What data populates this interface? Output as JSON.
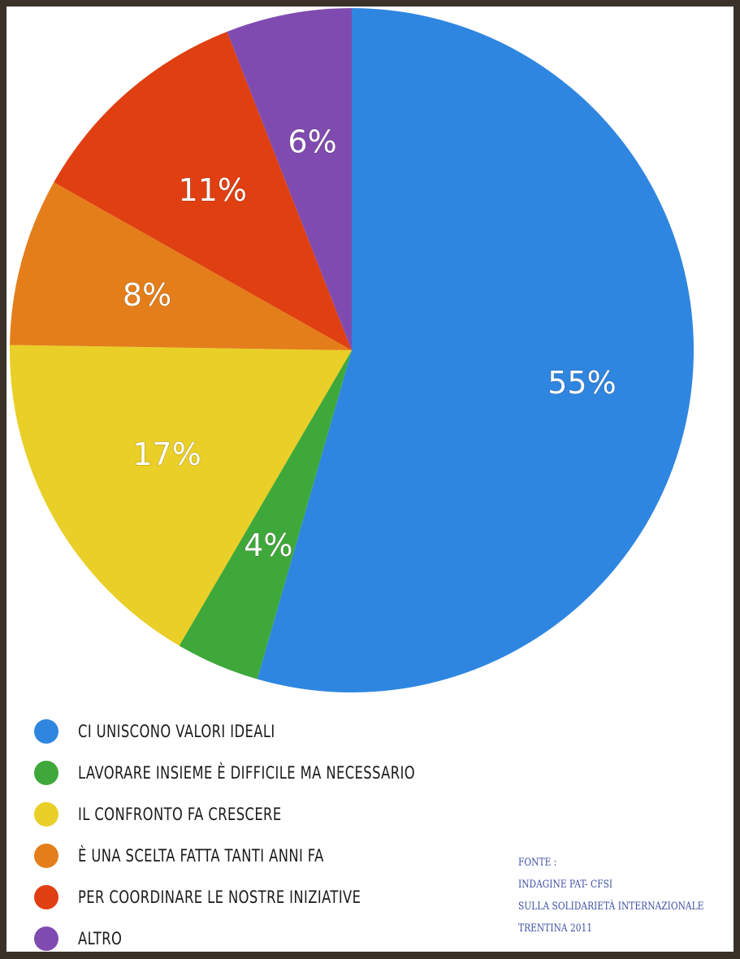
{
  "chart_data": {
    "type": "pie",
    "title": "",
    "slices": [
      {
        "label": "CI UNISCONO VALORI IDEALI",
        "value": 55,
        "value_label": "55%",
        "color": "#2f86e0"
      },
      {
        "label": "LAVORARE INSIEME È DIFFICILE MA NECESSARIO",
        "value": 4,
        "value_label": "4%",
        "color": "#3ea83a"
      },
      {
        "label": "IL CONFRONTO FA CRESCERE",
        "value": 17,
        "value_label": "17%",
        "color": "#e9cf27"
      },
      {
        "label": "È UNA SCELTA FATTA TANTI ANNI FA",
        "value": 8,
        "value_label": "8%",
        "color": "#e47e1b"
      },
      {
        "label": "PER COORDINARE LE NOSTRE INIZIATIVE",
        "value": 11,
        "value_label": "11%",
        "color": "#e03f12"
      },
      {
        "label": "ALTRO",
        "value": 6,
        "value_label": "6%",
        "color": "#7f4bb0"
      }
    ],
    "start_angle_deg": 0,
    "direction": "clockwise",
    "legend_placement": "bottom-left"
  },
  "source": {
    "heading": "FONTE :",
    "line1": "INDAGINE PAT- CFSI",
    "line2": "SULLA SOLIDARIETÀ INTERNAZIONALE",
    "line3": "TRENTINA 2011"
  }
}
